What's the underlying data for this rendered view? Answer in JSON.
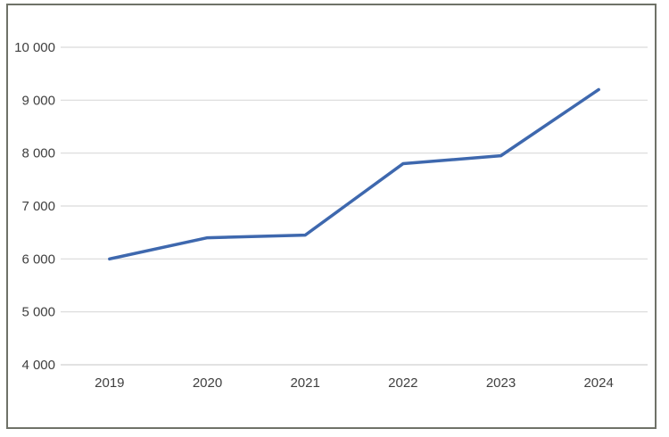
{
  "chart_data": {
    "type": "line",
    "title": "",
    "xlabel": "",
    "ylabel": "",
    "categories": [
      "2019",
      "2020",
      "2021",
      "2022",
      "2023",
      "2024"
    ],
    "values": [
      6000,
      6400,
      6450,
      7800,
      7950,
      9200
    ],
    "ylim": [
      4000,
      10000
    ],
    "ytick_interval": 1000,
    "ytick_labels": [
      "4 000",
      "5 000",
      "6 000",
      "7 000",
      "8 000",
      "9 000",
      "10 000"
    ],
    "grid": true,
    "legend": "none",
    "markers": "none",
    "colors": {
      "line": "#3E68AE",
      "gridline": "#D9D9D9",
      "axis_line": "#D0D0D0",
      "tick_label": "#404040",
      "frame_border": "#6F7268",
      "background": "#FFFFFF"
    }
  }
}
